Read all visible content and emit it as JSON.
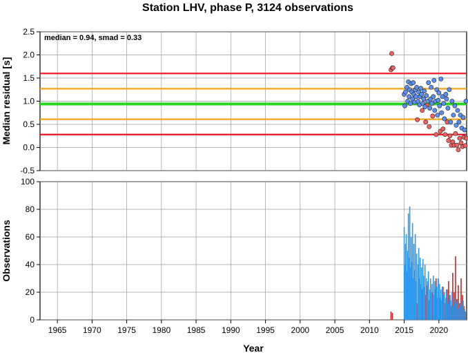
{
  "title": "Station LHV, phase P, 3124 observations",
  "colors": {
    "outer_band": "#e8141c",
    "inner_band": "#f5a31a",
    "median_line": "#25d81f",
    "inlier": "#5b8ff0",
    "outlier": "#f26060",
    "grid": "#9a9a9a",
    "bar_blue": "#2e9bf0",
    "bar_red": "#d42020"
  },
  "chart_data": [
    {
      "type": "scatter",
      "ylabel": "Median residual [s]",
      "xlabel": "",
      "xlim": [
        1962.5,
        2024.0
      ],
      "ylim": [
        -0.5,
        2.5
      ],
      "yticks": [
        "-0.5",
        "0.0",
        "0.5",
        "1.0",
        "1.5",
        "2.0",
        "2.5"
      ],
      "grid": true,
      "annotation": "median = 0.94, smad = 0.33",
      "reference_lines": [
        {
          "y": 1.6,
          "kind": "outer"
        },
        {
          "y": 1.27,
          "kind": "inner"
        },
        {
          "y": 0.94,
          "kind": "median"
        },
        {
          "y": 0.61,
          "kind": "inner"
        },
        {
          "y": 0.28,
          "kind": "outer"
        }
      ],
      "series": [
        {
          "kind": "outlier",
          "x": [
            2013.1,
            2013.2,
            2013.3,
            2013.4,
            2016.9,
            2017.6,
            2018.1,
            2018.3,
            2018.6,
            2019.1,
            2019.6,
            2020.2,
            2020.6,
            2020.9,
            2021.2,
            2021.4,
            2021.6,
            2021.8,
            2022.0,
            2022.2,
            2022.4,
            2022.6,
            2022.8,
            2023.0,
            2023.2,
            2023.4,
            2023.6,
            2023.8,
            2023.95
          ],
          "y": [
            1.68,
            2.03,
            1.72,
            1.72,
            0.6,
            0.8,
            0.55,
            0.92,
            0.45,
            0.68,
            0.28,
            0.35,
            0.4,
            0.28,
            0.55,
            0.15,
            0.25,
            0.05,
            0.12,
            0.05,
            0.3,
            0.05,
            -0.05,
            0.2,
            0.1,
            0.02,
            0.22,
            0.04,
            0.2
          ]
        },
        {
          "kind": "inlier",
          "x": [
            2015.0,
            2015.1,
            2015.2,
            2015.4,
            2015.5,
            2015.6,
            2015.7,
            2015.8,
            2015.9,
            2016.0,
            2016.1,
            2016.2,
            2016.3,
            2016.4,
            2016.5,
            2016.6,
            2016.7,
            2016.8,
            2017.0,
            2017.1,
            2017.2,
            2017.3,
            2017.4,
            2017.5,
            2017.7,
            2017.8,
            2017.9,
            2018.0,
            2018.2,
            2018.4,
            2018.5,
            2018.7,
            2018.8,
            2018.9,
            2019.0,
            2019.2,
            2019.3,
            2019.4,
            2019.5,
            2019.7,
            2019.8,
            2019.9,
            2020.0,
            2020.1,
            2020.3,
            2020.4,
            2020.5,
            2020.7,
            2020.8,
            2021.0,
            2021.1,
            2021.3,
            2021.5,
            2021.7,
            2021.9,
            2022.1,
            2022.3,
            2022.5,
            2022.7,
            2022.9,
            2023.1,
            2023.3,
            2023.5,
            2023.7,
            2023.9
          ],
          "y": [
            1.15,
            0.9,
            1.2,
            1.3,
            1.0,
            1.42,
            1.1,
            1.25,
            0.95,
            1.38,
            1.2,
            1.05,
            1.4,
            1.15,
            0.98,
            1.25,
            1.1,
            1.3,
            1.0,
            1.2,
            0.92,
            1.1,
            1.28,
            1.15,
            0.95,
            1.05,
            1.22,
            0.88,
            1.12,
            1.0,
            1.4,
            0.85,
            1.05,
            1.3,
            0.95,
            1.1,
            1.45,
            0.8,
            1.0,
            1.25,
            0.7,
            1.02,
            1.18,
            0.9,
            1.48,
            0.75,
            1.1,
            0.95,
            0.62,
            1.15,
            1.05,
            0.85,
            1.25,
            0.55,
            1.0,
            0.7,
            0.9,
            0.48,
            0.8,
            0.55,
            0.7,
            0.42,
            0.65,
            0.38,
            1.0
          ]
        }
      ]
    },
    {
      "type": "bar",
      "ylabel": "Observations",
      "xlabel": "Year",
      "xlim": [
        1962.5,
        2024.0
      ],
      "ylim": [
        0,
        100
      ],
      "xticks": [
        "1965",
        "1970",
        "1975",
        "1980",
        "1985",
        "1990",
        "1995",
        "2000",
        "2005",
        "2010",
        "2015",
        "2020"
      ],
      "yticks": [
        "0",
        "20",
        "40",
        "60",
        "80",
        "100"
      ],
      "grid": true,
      "series": [
        {
          "kind": "outlier",
          "x": [
            2013.1,
            2013.3,
            2016.9,
            2017.6,
            2018.1,
            2018.3,
            2018.6,
            2019.1,
            2019.6,
            2020.2,
            2020.6,
            2020.9,
            2021.2,
            2021.4,
            2021.6,
            2021.8,
            2022.0,
            2022.2,
            2022.4,
            2022.6,
            2022.8,
            2023.0,
            2023.2,
            2023.4,
            2023.6,
            2023.8
          ],
          "values": [
            6,
            5,
            12,
            22,
            18,
            25,
            14,
            20,
            30,
            16,
            24,
            12,
            22,
            28,
            18,
            10,
            34,
            20,
            46,
            15,
            25,
            12,
            30,
            18,
            10,
            6
          ]
        },
        {
          "kind": "inlier",
          "x": [
            2015.0,
            2015.1,
            2015.2,
            2015.3,
            2015.4,
            2015.5,
            2015.6,
            2015.7,
            2015.8,
            2015.9,
            2016.0,
            2016.1,
            2016.2,
            2016.3,
            2016.4,
            2016.5,
            2016.6,
            2016.7,
            2016.8,
            2017.0,
            2017.1,
            2017.2,
            2017.3,
            2017.4,
            2017.5,
            2017.7,
            2017.8,
            2017.9,
            2018.0,
            2018.2,
            2018.4,
            2018.5,
            2018.7,
            2018.8,
            2018.9,
            2019.0,
            2019.2,
            2019.3,
            2019.4,
            2019.5,
            2019.7,
            2019.8,
            2019.9,
            2020.0,
            2020.1,
            2020.3,
            2020.4,
            2020.5,
            2020.7,
            2020.8,
            2021.0,
            2021.1,
            2021.3,
            2021.5,
            2021.7,
            2021.9,
            2022.1,
            2022.3,
            2022.5,
            2022.7,
            2022.9,
            2023.1,
            2023.3,
            2023.5,
            2023.7,
            2023.9
          ],
          "values": [
            67,
            40,
            55,
            62,
            35,
            50,
            77,
            45,
            82,
            38,
            60,
            42,
            70,
            30,
            55,
            36,
            62,
            28,
            48,
            40,
            52,
            30,
            45,
            26,
            38,
            44,
            32,
            24,
            40,
            30,
            28,
            35,
            22,
            30,
            20,
            26,
            32,
            18,
            28,
            22,
            24,
            16,
            30,
            20,
            26,
            22,
            14,
            24,
            18,
            20,
            16,
            22,
            12,
            18,
            14,
            20,
            10,
            16,
            12,
            14,
            8,
            12,
            10,
            14,
            8,
            6
          ]
        }
      ]
    }
  ]
}
